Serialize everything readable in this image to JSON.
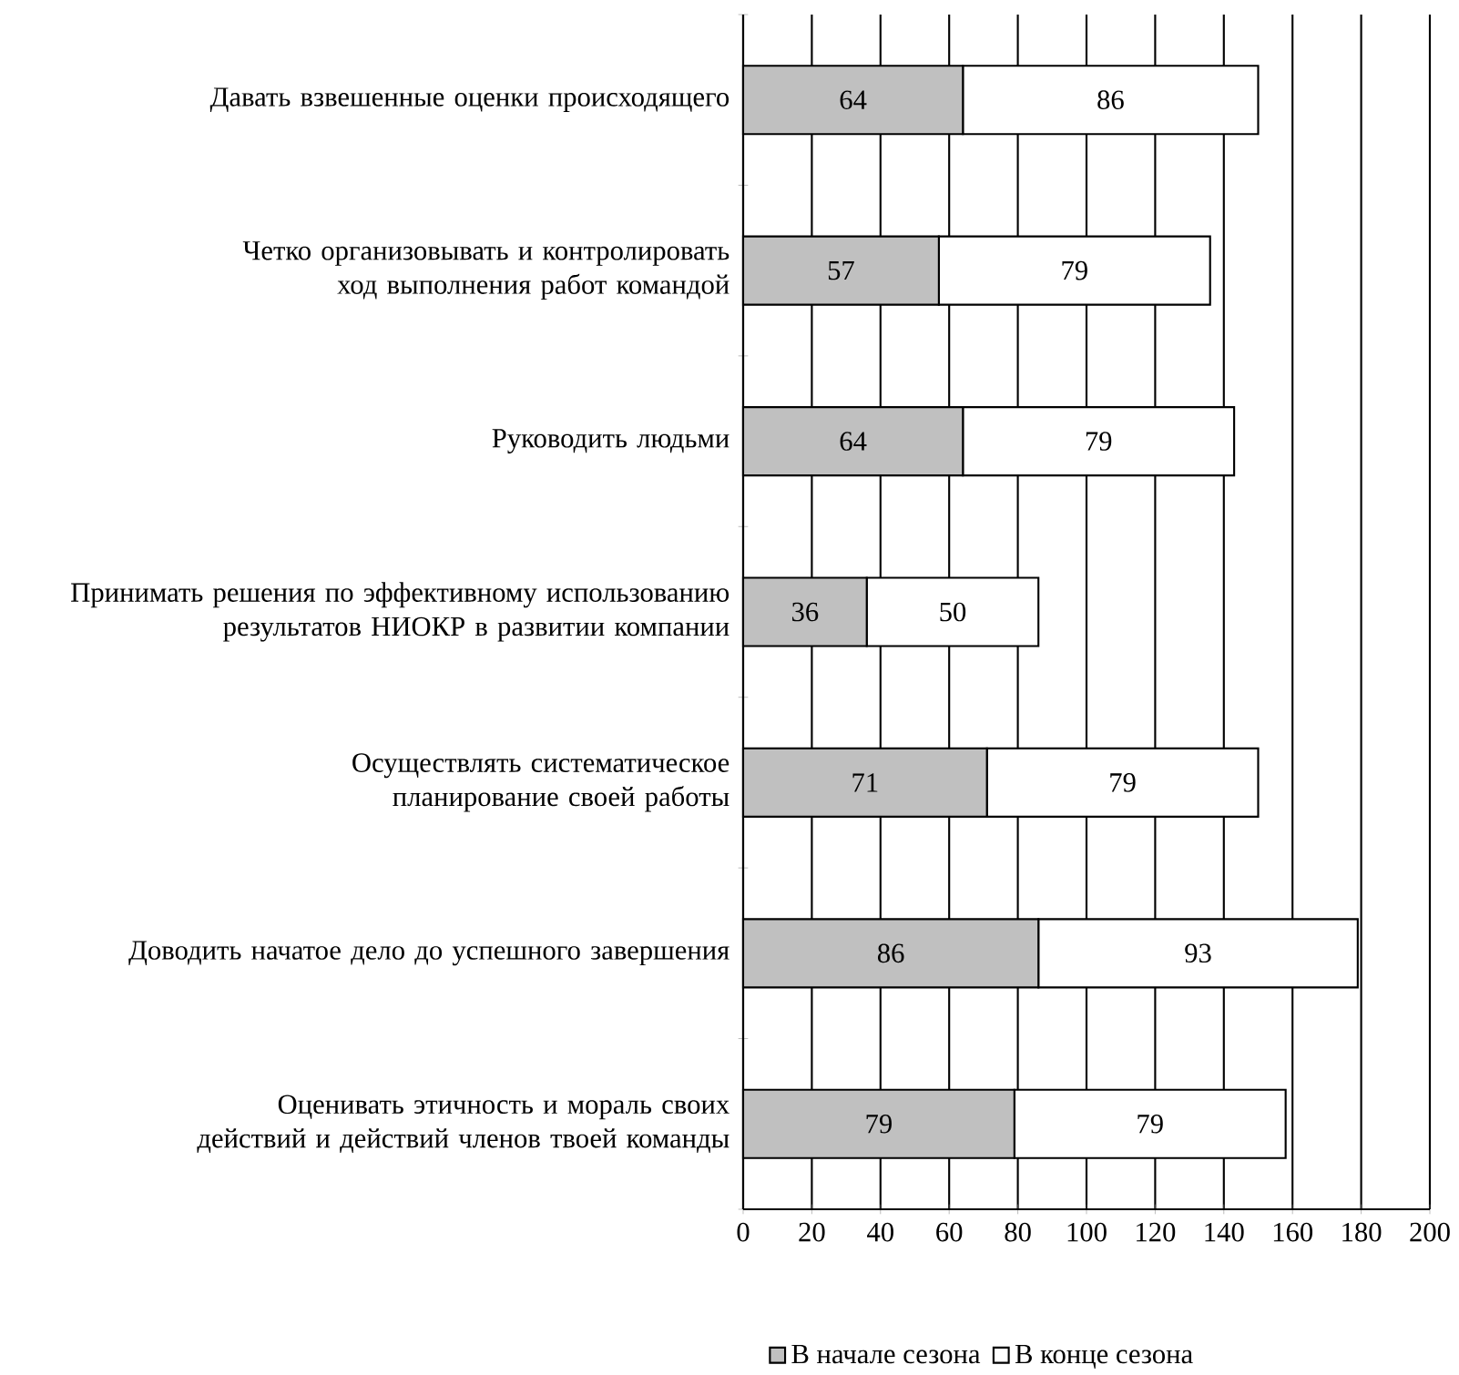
{
  "chart_data": {
    "type": "bar",
    "orientation": "horizontal",
    "stacked": true,
    "categories": [
      "Давать взвешенные оценки происходящего",
      "Четко организовывать и контролировать ход выполнения работ командой",
      "Руководить людьми",
      "Принимать решения по эффективному использованию результатов НИОКР в развитии компании",
      "Осуществлять систематическое планирование своей работы",
      "Доводить начатое дело до успешного завершения",
      "Оценивать этичность и мораль своих действий и действий членов твоей команды"
    ],
    "series": [
      {
        "name": "В начале сезона",
        "color": "#c0c0c0",
        "values": [
          64,
          57,
          64,
          36,
          71,
          86,
          79
        ]
      },
      {
        "name": "В конце сезона",
        "color": "#ffffff",
        "values": [
          86,
          79,
          79,
          50,
          79,
          93,
          79
        ]
      }
    ],
    "xlim": [
      0,
      200
    ],
    "xticks": [
      0,
      20,
      40,
      60,
      80,
      100,
      120,
      140,
      160,
      180,
      200
    ],
    "grid": "x",
    "legend": "bottom",
    "data_labels": true
  }
}
